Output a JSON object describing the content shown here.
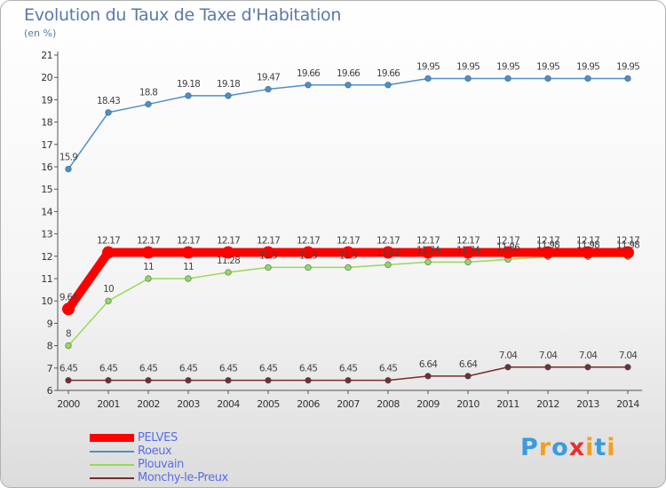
{
  "chart_data": {
    "type": "line",
    "title": "Evolution du Taux de Taxe d'Habitation",
    "subtitle": "(en %)",
    "x": [
      "2000",
      "2001",
      "2002",
      "2003",
      "2004",
      "2005",
      "2006",
      "2007",
      "2008",
      "2009",
      "2010",
      "2011",
      "2012",
      "2013",
      "2014"
    ],
    "ylim": [
      6,
      21
    ],
    "yticks": [
      6,
      7,
      8,
      9,
      10,
      11,
      12,
      13,
      14,
      15,
      16,
      17,
      18,
      19,
      20,
      21
    ],
    "grid": false,
    "legend_position": "bottom-left",
    "series": [
      {
        "name": "PELVES",
        "color": "#ff0000",
        "values": [
          9.64,
          12.17,
          12.17,
          12.17,
          12.17,
          12.17,
          12.17,
          12.17,
          12.17,
          12.17,
          12.17,
          12.17,
          12.17,
          12.17,
          12.17
        ],
        "labels": [
          "9.64",
          "12.17",
          "12.17",
          "12.17",
          "12.17",
          "12.17",
          "12.17",
          "12.17",
          "12.17",
          "12.17",
          "12.17",
          "12.17",
          "12.17",
          "12.17",
          "12.17"
        ]
      },
      {
        "name": "Roeux",
        "color": "#4f8fc8",
        "values": [
          15.9,
          18.43,
          18.8,
          19.18,
          19.18,
          19.47,
          19.66,
          19.66,
          19.66,
          19.95,
          19.95,
          19.95,
          19.95,
          19.95,
          19.95
        ],
        "labels": [
          "15.9",
          "18.43",
          "18.8",
          "19.18",
          "19.18",
          "19.47",
          "19.66",
          "19.66",
          "19.66",
          "19.95",
          "19.95",
          "19.95",
          "19.95",
          "19.95",
          "19.95"
        ]
      },
      {
        "name": "Plouvain",
        "color": "#99d955",
        "values": [
          8,
          10,
          11,
          11,
          11.28,
          11.5,
          11.5,
          11.5,
          11.62,
          11.74,
          11.74,
          11.86,
          11.98,
          11.98,
          11.98
        ],
        "labels": [
          "8",
          "10",
          "11",
          "11",
          "11.28",
          "11.5",
          "11.5",
          "11.5",
          "11.62",
          "11.74",
          "11.74",
          "11.86",
          "11.98",
          "11.98",
          "11.98"
        ]
      },
      {
        "name": "Monchy-le-Preux",
        "color": "#7a2b2b",
        "values": [
          6.45,
          6.45,
          6.45,
          6.45,
          6.45,
          6.45,
          6.45,
          6.45,
          6.45,
          6.64,
          6.64,
          7.04,
          7.04,
          7.04,
          7.04
        ],
        "labels": [
          "6.45",
          "6.45",
          "6.45",
          "6.45",
          "6.45",
          "6.45",
          "6.45",
          "6.45",
          "6.45",
          "6.64",
          "6.64",
          "7.04",
          "7.04",
          "7.04",
          "7.04"
        ]
      }
    ]
  },
  "logo": {
    "letters": [
      "P",
      "r",
      "o",
      "x",
      "i",
      "t",
      "i"
    ],
    "colors": [
      "#3a9be0",
      "#f0a020",
      "#3a9be0",
      "#e83030",
      "#f0a020",
      "#3a9be0",
      "#f0a020"
    ]
  }
}
